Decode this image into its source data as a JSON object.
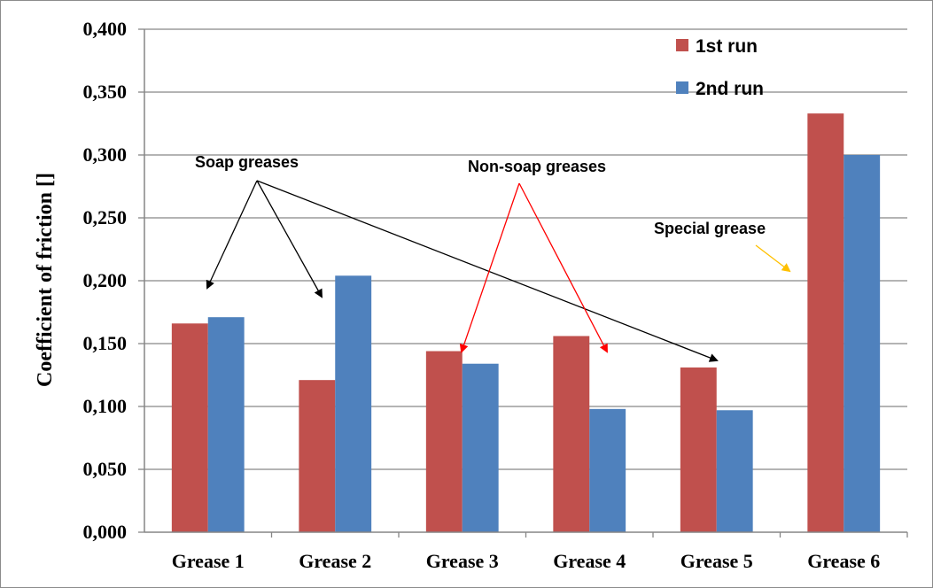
{
  "chart_data": {
    "type": "bar",
    "ylabel": "Coefficient  of friction []",
    "xlabel": "",
    "ylim": [
      0,
      0.4
    ],
    "yticks": [
      "0,000",
      "0,050",
      "0,100",
      "0,150",
      "0,200",
      "0,250",
      "0,300",
      "0,350",
      "0,400"
    ],
    "categories": [
      "Grease 1",
      "Grease 2",
      "Grease 3",
      "Grease 4",
      "Grease 5",
      "Grease 6"
    ],
    "series": [
      {
        "name": "1st run",
        "color": "#c0504d",
        "values": [
          0.166,
          0.121,
          0.144,
          0.156,
          0.131,
          0.333
        ]
      },
      {
        "name": "2nd run",
        "color": "#4f81bd",
        "values": [
          0.171,
          0.204,
          0.134,
          0.098,
          0.097,
          0.3
        ]
      }
    ],
    "grid": true,
    "legend_position": "top-right",
    "annotations": [
      {
        "text": "Soap greases",
        "color": "#000000",
        "points_to": [
          "Grease 1",
          "Grease 2",
          "Grease 5"
        ]
      },
      {
        "text": "Non-soap greases",
        "color": "#ff0000",
        "points_to": [
          "Grease 3",
          "Grease 4"
        ]
      },
      {
        "text": "Special grease",
        "color": "#ffc000",
        "points_to": [
          "Grease 6"
        ]
      }
    ]
  }
}
